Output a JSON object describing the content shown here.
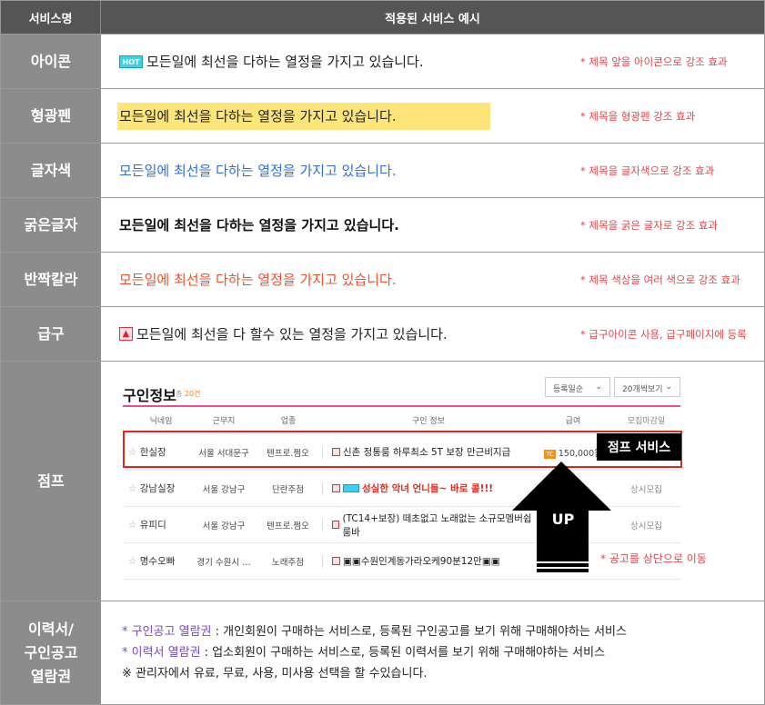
{
  "header": {
    "col1": "서비스명",
    "col2": "적용된 서비스 예시"
  },
  "example_text": "모든일에 최선을 다하는 열정을 가지고 있습니다.",
  "rows": [
    {
      "label": "아이콘",
      "badge": "HOT",
      "note": "* 제목 앞을 아이콘으로 강조 효과"
    },
    {
      "label": "형광펜",
      "note": "* 제목을 형광펜 강조 효과"
    },
    {
      "label": "글자색",
      "note": "* 제목을 글자색으로 강조 효과"
    },
    {
      "label": "굵은글자",
      "note": "* 제목을 굵은 글자로 강조 효과"
    },
    {
      "label": "반짝칼라",
      "note": "* 제목 색상을 여러 색으로 강조 효과"
    },
    {
      "label": "급구",
      "text": "모든일에 최선을 다 할수 있는 열정을 가지고 있습니다.",
      "note": "* 급구아이콘 사용, 급구페이지에 등록"
    }
  ],
  "colors": {
    "highlight": "#fde57a",
    "blue": "#2f6fe3",
    "red": "#f0502d",
    "note": "#e0464b",
    "label_bg": "#8c8c8c",
    "header_bg": "#555555"
  },
  "jump": {
    "label": "점프",
    "board_title": "구인정보",
    "count_prefix": "총",
    "count": "20건",
    "sort_select": "등록일순",
    "per_page_select": "20개씩보기",
    "columns": [
      "닉네임",
      "근무지",
      "업종",
      "구인 정보",
      "급여",
      "모집마감일"
    ],
    "listings": [
      {
        "nick": "한실장",
        "loc": "서울 서대문구",
        "cat": "텐프로.쩜오",
        "info": "신촌 정통룸 하루최소 5T 보장 만근비지급",
        "pay_badge": "TC",
        "pay": "150,000원",
        "end": ""
      },
      {
        "nick": "강남실장",
        "loc": "서울 강남구",
        "cat": "단란주점",
        "info": "성실한 악녀 언니들~ 바로 콜!!!",
        "pay": "",
        "end": "상시모집"
      },
      {
        "nick": "유피디",
        "loc": "서울 강남구",
        "cat": "텐프로.쩜오",
        "info": "(TC14+보장) 떼초없고 노래없는 소규모멤버쉽룸바",
        "pay": "",
        "end": "상시모집"
      },
      {
        "nick": "명수오빠",
        "loc": "경기 수원시 …",
        "cat": "노래주점",
        "info": "▣▣수원인계동가라오케90분12만▣▣",
        "pay": "",
        "end": ""
      }
    ],
    "jump_badge": "점프 서비스",
    "arrow_text": "UP",
    "note": "* 공고를 상단으로 이동"
  },
  "views": {
    "label": "이력서/\n구인공고\n열람권",
    "lines": [
      {
        "key": "* 구인공고 열람권",
        "text": " : 개인회원이 구매하는 서비스로, 등록된 구인공고를 보기 위해 구매해야하는 서비스"
      },
      {
        "key": "* 이력서 열람권",
        "text": " : 업소회원이 구매하는 서비스로, 등록된 이력서를 보기 위해 구매해야하는 서비스"
      },
      {
        "key": "",
        "text": "※ 관리자에서 유료, 무료, 사용, 미사용 선택을 할 수있습니다."
      }
    ]
  }
}
